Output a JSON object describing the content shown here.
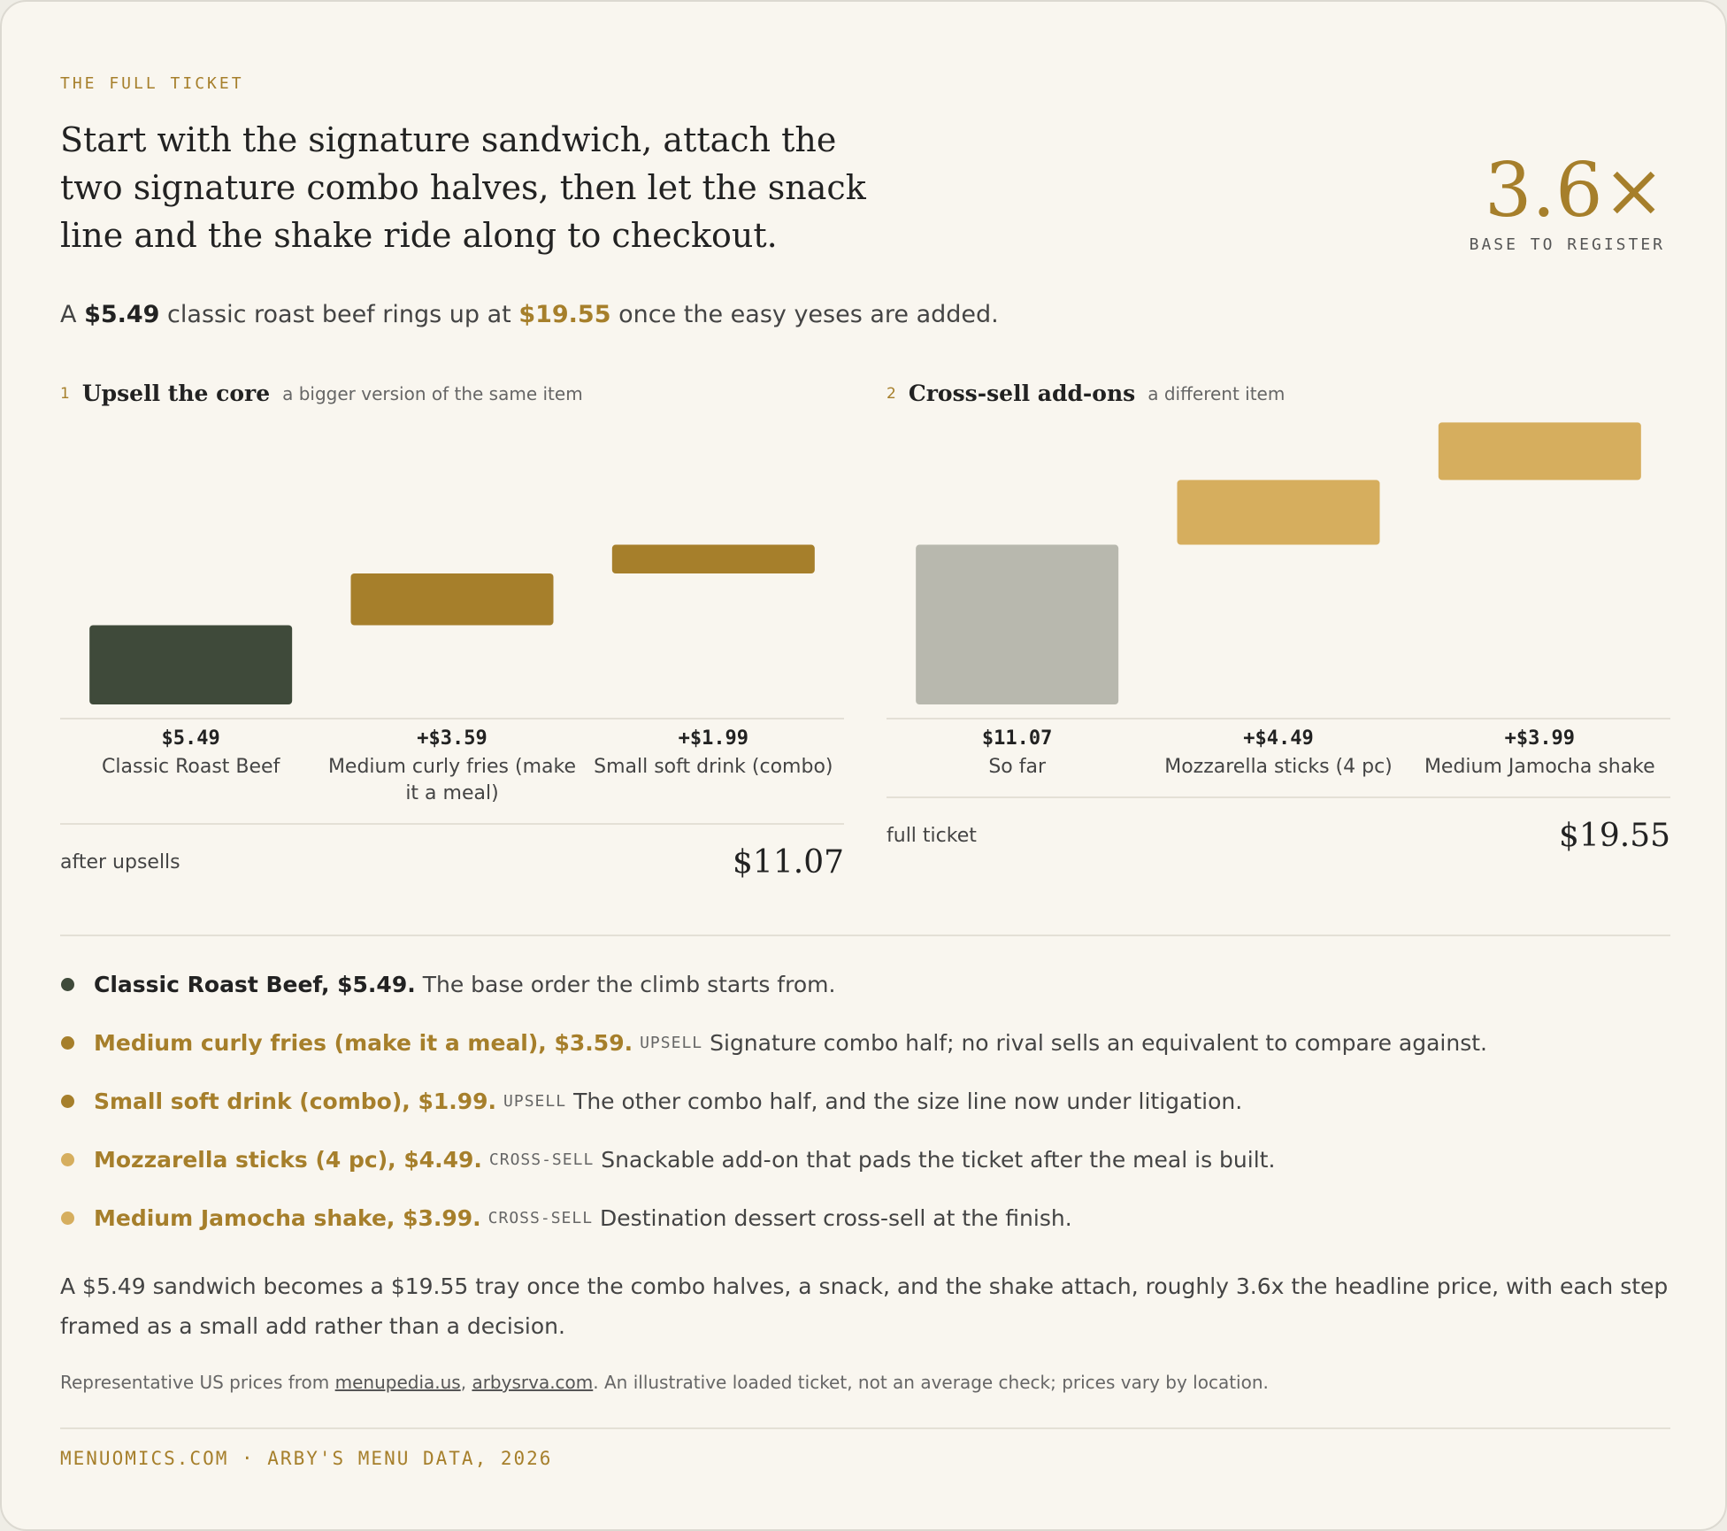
{
  "header": {
    "eyebrow": "THE FULL TICKET",
    "title": "Start with the signature sandwich, attach the two signature combo halves, then let the snack line and the shake ride along to checkout.",
    "multiple": "3.6×",
    "multiple_label": "BASE TO REGISTER"
  },
  "summary": [
    "A ",
    "$5.49",
    " classic roast beef rings up at ",
    "$19.55",
    " once the easy yeses are added."
  ],
  "chart_data": [
    {
      "type": "waterfall",
      "step": "1",
      "title": "Upsell the core",
      "subtitle": "a bigger version of the same item",
      "categories": [
        "Classic Roast Beef",
        "Medium curly fries (make it a meal)",
        "Small soft drink (combo)"
      ],
      "values": [
        5.49,
        3.59,
        1.99
      ],
      "value_labels": [
        "$5.49",
        "+$3.59",
        "+$1.99"
      ],
      "colors": [
        "#3f4a3a",
        "#a67f2b",
        "#a67f2b"
      ],
      "ylim": [
        0,
        20
      ],
      "total": {
        "name": "after upsells",
        "value": 11.07,
        "label": "$11.07"
      }
    },
    {
      "type": "waterfall",
      "step": "2",
      "title": "Cross-sell add-ons",
      "subtitle": "a different item",
      "categories": [
        "So far",
        "Mozzarella sticks (4 pc)",
        "Medium Jamocha shake"
      ],
      "values": [
        11.07,
        4.49,
        3.99
      ],
      "value_labels": [
        "$11.07",
        "+$4.49",
        "+$3.99"
      ],
      "colors": [
        "#b8b8ae",
        "#d6ae5e",
        "#d6ae5e"
      ],
      "ylim": [
        0,
        20
      ],
      "total": {
        "name": "full ticket",
        "value": 19.55,
        "label": "$19.55"
      }
    }
  ],
  "notes": [
    {
      "color": "#3f4a3a",
      "name": "Classic Roast Beef, $5.49.",
      "text": "The base order the climb starts from."
    },
    {
      "color": "#a67f2b",
      "name": "Medium curly fries (make it a meal), $3.59.",
      "tag": "UPSELL",
      "text": "Signature combo half; no rival sells an equivalent to compare against."
    },
    {
      "color": "#a67f2b",
      "name": "Small soft drink (combo), $1.99.",
      "tag": "UPSELL",
      "text": "The other combo half, and the size line now under litigation."
    },
    {
      "color": "#d6ae5e",
      "name": "Mozzarella sticks (4 pc), $4.49.",
      "tag": "CROSS-SELL",
      "text": "Snackable add-on that pads the ticket after the meal is built."
    },
    {
      "color": "#d6ae5e",
      "name": "Medium Jamocha shake, $3.99.",
      "tag": "CROSS-SELL",
      "text": "Destination dessert cross-sell at the finish."
    }
  ],
  "conclusion": "A $5.49 sandwich becomes a $19.55 tray once the combo halves, a snack, and the shake attach, roughly 3.6x the headline price, with each step framed as a small add rather than a decision.",
  "source": [
    "Representative US prices from ",
    "menupedia.us",
    ", ",
    "arbysrva.com",
    ". An illustrative loaded ticket, not an average check; prices vary by location."
  ],
  "footer": "MENUOMICS.COM · ARBY'S MENU DATA, 2026"
}
